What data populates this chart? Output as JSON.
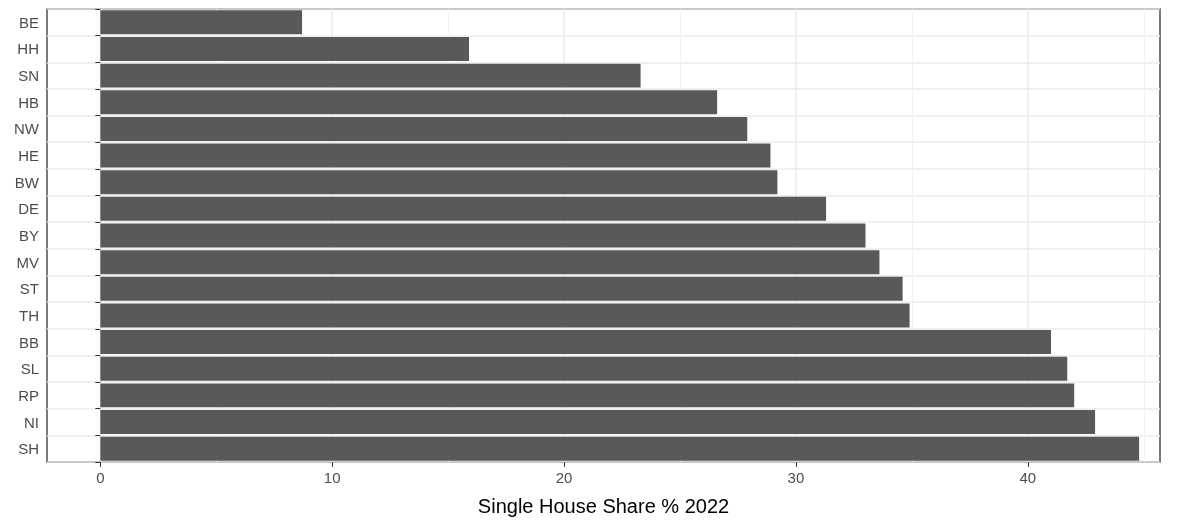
{
  "chart_data": {
    "type": "bar",
    "orientation": "horizontal",
    "xlabel": "Single House Share % 2022",
    "categories": [
      "BE",
      "HH",
      "SN",
      "HB",
      "NW",
      "HE",
      "BW",
      "DE",
      "BY",
      "MV",
      "ST",
      "TH",
      "BB",
      "SL",
      "RP",
      "NI",
      "SH"
    ],
    "values": [
      8.7,
      15.9,
      23.3,
      26.6,
      27.9,
      28.9,
      29.2,
      31.3,
      33.0,
      33.6,
      34.6,
      34.9,
      41.0,
      41.7,
      42.0,
      42.9,
      44.8
    ],
    "color": "#595959",
    "xlim": [
      -2.3,
      45.7
    ],
    "xticks": [
      0,
      10,
      20,
      30,
      40
    ],
    "grid": true
  }
}
